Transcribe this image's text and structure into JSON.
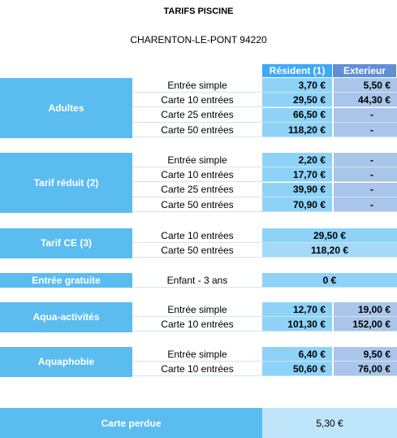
{
  "title": "TARIFS PISCINE",
  "subtitle": "CHARENTON-LE-PONT 94220",
  "headers": {
    "resident": "Résident (1)",
    "exterieur": "Exterieur"
  },
  "groups": [
    {
      "category": "Adultes",
      "rows": [
        {
          "label": "Entrée simple",
          "resident": "3,70 €",
          "exterieur": "5,50 €"
        },
        {
          "label": "Carte 10 entrées",
          "resident": "29,50 €",
          "exterieur": "44,30 €"
        },
        {
          "label": "Carte 25 entrées",
          "resident": "66,50 €",
          "exterieur": "-"
        },
        {
          "label": "Carte 50 entrées",
          "resident": "118,20 €",
          "exterieur": "-"
        }
      ]
    },
    {
      "category": "Tarif réduit (2)",
      "rows": [
        {
          "label": "Entrée simple",
          "resident": "2,20 €",
          "exterieur": "-"
        },
        {
          "label": "Carte 10 entrées",
          "resident": "17,70 €",
          "exterieur": "-"
        },
        {
          "label": "Carte 25 entrées",
          "resident": "39,90 €",
          "exterieur": "-"
        },
        {
          "label": "Carte 50 entrées",
          "resident": "70,90 €",
          "exterieur": "-"
        }
      ]
    },
    {
      "category": "Tarif CE (3)",
      "rows": [
        {
          "label": "Carte 10 entrées",
          "both": "29,50 €"
        },
        {
          "label": "Carte 50 entrées",
          "both": "118,20 €"
        }
      ]
    },
    {
      "category": "Entrée gratuite",
      "rows": [
        {
          "label": "Enfant - 3 ans",
          "both": "0 €"
        }
      ]
    },
    {
      "category": "Aqua-activités",
      "rows": [
        {
          "label": "Entrée simple",
          "resident": "12,70 €",
          "exterieur": "19,00 €"
        },
        {
          "label": "Carte 10 entrées",
          "resident": "101,30 €",
          "exterieur": "152,00 €"
        }
      ]
    },
    {
      "category": "Aquaphobie",
      "rows": [
        {
          "label": "Entrée simple",
          "resident": "6,40 €",
          "exterieur": "9,50 €"
        },
        {
          "label": "Carte 10 entrées",
          "resident": "50,60 €",
          "exterieur": "76,00 €"
        }
      ]
    }
  ],
  "lost_card": {
    "label": "Carte perdue",
    "value": "5,30 €"
  }
}
